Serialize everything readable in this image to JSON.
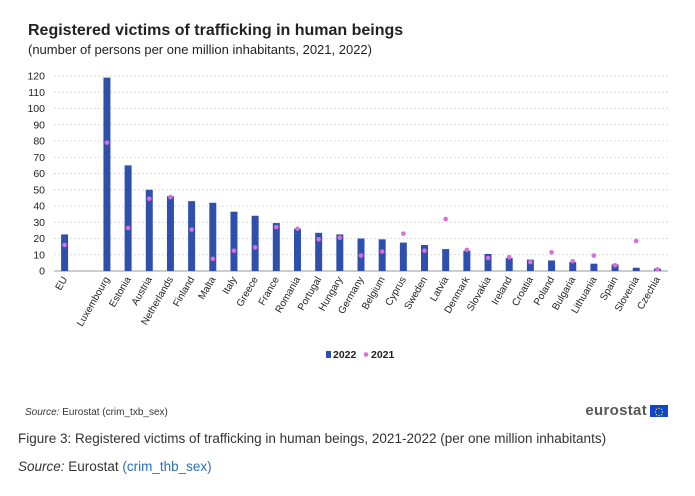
{
  "chart_data": {
    "type": "bar",
    "title": "Registered victims of trafficking in human beings",
    "subtitle": "(number of persons per one million inhabitants, 2021, 2022)",
    "categories": [
      "EU",
      "",
      "Luxembourg",
      "Estonia",
      "Austria",
      "Netherlands",
      "Finland",
      "Malta",
      "Italy",
      "Greece",
      "France",
      "Romania",
      "Portugal",
      "Hungary",
      "Germany",
      "Belgium",
      "Cyprus",
      "Sweden",
      "Latvia",
      "Denmark",
      "Slovakia",
      "Ireland",
      "Croatia",
      "Poland",
      "Bulgaria",
      "Lithuania",
      "Spain",
      "Slovenia",
      "Czechia"
    ],
    "series": [
      {
        "name": "2022",
        "mark": "bar",
        "color": "#2e4fae",
        "values": [
          22.5,
          null,
          119,
          65,
          50,
          46,
          43,
          42,
          36.5,
          34,
          29.5,
          26,
          23.5,
          22.5,
          20,
          19.5,
          17.5,
          16,
          13.5,
          12.5,
          10.5,
          8,
          7,
          6.5,
          5.5,
          4.5,
          4,
          2,
          1.5
        ]
      },
      {
        "name": "2021",
        "mark": "dot",
        "color": "#d96ed9",
        "values": [
          16,
          null,
          79,
          26.5,
          44.5,
          45.5,
          25.5,
          7.5,
          12.5,
          14.5,
          27,
          26,
          19.5,
          20.5,
          9.5,
          12,
          23,
          12.5,
          32,
          13,
          8,
          8.5,
          5.5,
          11.5,
          6,
          9.5,
          3.5,
          18.5,
          1
        ]
      }
    ],
    "ylim": [
      0,
      120
    ],
    "yticks": [
      0,
      10,
      20,
      30,
      40,
      50,
      60,
      70,
      80,
      90,
      100,
      110,
      120
    ],
    "xlabel": "",
    "ylabel": "",
    "grid": true,
    "legend_position": "bottom-center"
  },
  "source_note": {
    "label": "Source:",
    "text": "Eurostat (crim_txb_sex)"
  },
  "logo": {
    "text": "eurostat",
    "flag_color": "#0e47cb"
  },
  "caption": "Figure 3: Registered victims of trafficking in human beings, 2021-2022 (per one million inhabitants)",
  "source_line": {
    "label": "Source:",
    "text": "Eurostat",
    "link": "(crim_thb_sex)"
  }
}
